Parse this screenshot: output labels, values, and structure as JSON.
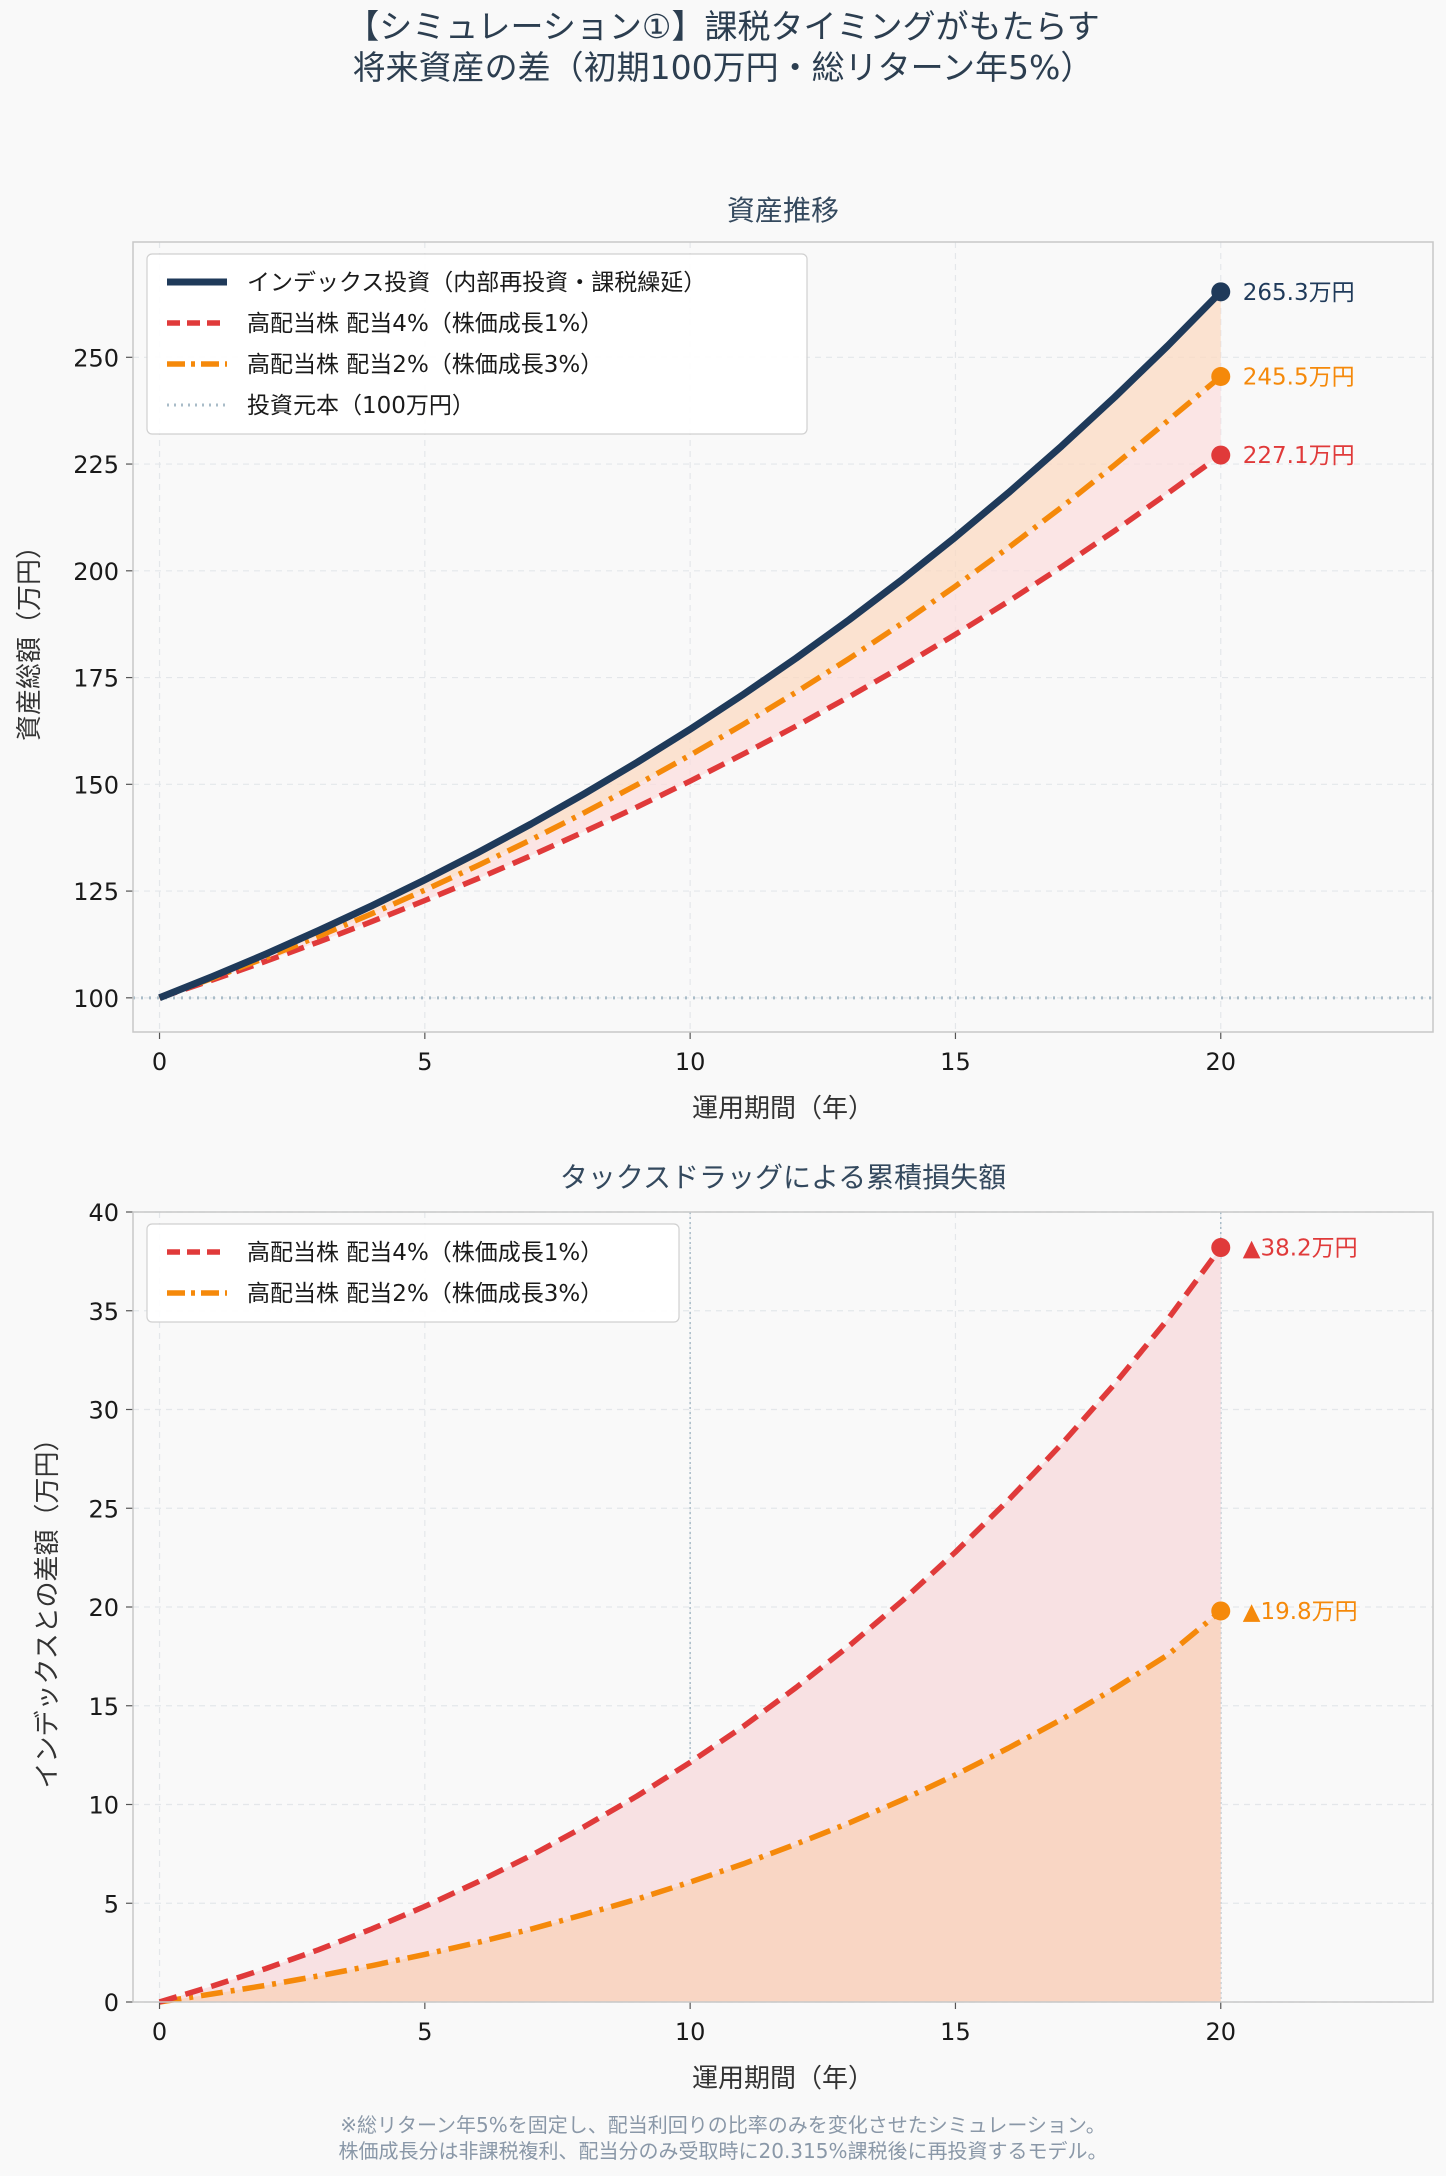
{
  "figure": {
    "title_line1": "【シミュレーション①】課税タイミングがもたらす",
    "title_line2": "将来資産の差（初期100万円・総リターン年5%）",
    "footnote_line1": "※総リターン年5%を固定し、配当利回りの比率のみを変化させたシミュレーション。",
    "footnote_line2": "株価成長分は非課税複利、配当分のみ受取時に20.315%課税後に再投資するモデル。"
  },
  "colors": {
    "index": "#1f3a5a",
    "high4": "#e03a3a",
    "high2": "#f5890a",
    "principal": "#a9bcc8"
  },
  "chart_data": [
    {
      "type": "line",
      "title": "資産推移",
      "xlabel": "運用期間（年）",
      "ylabel": "資産総額（万円）",
      "xlim": [
        -0.5,
        24
      ],
      "ylim": [
        92,
        277
      ],
      "xticks": [
        0,
        5,
        10,
        15,
        20
      ],
      "yticks": [
        100,
        125,
        150,
        175,
        200,
        225,
        250
      ],
      "grid": true,
      "legend_position": "top-left",
      "x": [
        0,
        1,
        2,
        3,
        4,
        5,
        6,
        7,
        8,
        9,
        10,
        11,
        12,
        13,
        14,
        15,
        16,
        17,
        18,
        19,
        20
      ],
      "series": [
        {
          "name": "インデックス投資（内部再投資・課税繰延）",
          "key": "index",
          "style": "solid",
          "values": [
            100,
            105,
            110.25,
            115.76,
            121.55,
            127.63,
            134.01,
            140.71,
            147.75,
            155.13,
            162.89,
            171.03,
            179.59,
            188.56,
            197.99,
            207.89,
            218.29,
            229.2,
            240.66,
            252.7,
            265.33
          ],
          "end_label": "265.3万円"
        },
        {
          "name": "高配当株 配当4%（株価成長1%）",
          "key": "high4",
          "style": "dashed",
          "values": [
            100,
            104.19,
            108.56,
            113.11,
            117.85,
            122.79,
            127.93,
            133.29,
            138.88,
            144.7,
            150.76,
            157.08,
            163.66,
            170.52,
            177.67,
            185.11,
            192.87,
            200.95,
            209.37,
            218.14,
            227.1
          ],
          "end_label": "227.1万円"
        },
        {
          "name": "高配当株 配当2%（株価成長3%）",
          "key": "high2",
          "style": "dashdot",
          "values": [
            100,
            104.59,
            109.41,
            114.44,
            119.71,
            125.22,
            130.99,
            137.02,
            143.32,
            149.92,
            156.82,
            164.04,
            171.59,
            179.49,
            187.75,
            196.39,
            205.43,
            214.89,
            224.78,
            235.13,
            245.5
          ],
          "end_label": "245.5万円"
        },
        {
          "name": "投資元本（100万円）",
          "key": "principal",
          "style": "dotted",
          "values": [
            100,
            100,
            100,
            100,
            100,
            100,
            100,
            100,
            100,
            100,
            100,
            100,
            100,
            100,
            100,
            100,
            100,
            100,
            100,
            100,
            100
          ]
        }
      ]
    },
    {
      "type": "area",
      "title": "タックスドラッグによる累積損失額",
      "xlabel": "運用期間（年）",
      "ylabel": "インデックスとの差額（万円）",
      "xlim": [
        -0.5,
        24
      ],
      "ylim": [
        0,
        40
      ],
      "xticks": [
        0,
        5,
        10,
        15,
        20
      ],
      "yticks": [
        0,
        5,
        10,
        15,
        20,
        25,
        30,
        35,
        40
      ],
      "grid": true,
      "legend_position": "top-left",
      "vlines": [
        10,
        20
      ],
      "x": [
        0,
        1,
        2,
        3,
        4,
        5,
        6,
        7,
        8,
        9,
        10,
        11,
        12,
        13,
        14,
        15,
        16,
        17,
        18,
        19,
        20
      ],
      "series": [
        {
          "name": "高配当株 配当4%（株価成長1%）",
          "key": "high4",
          "style": "dashed",
          "values": [
            0,
            0.81,
            1.69,
            2.65,
            3.7,
            4.84,
            6.08,
            7.42,
            8.87,
            10.43,
            12.13,
            13.95,
            15.93,
            18.04,
            20.32,
            22.78,
            25.42,
            28.25,
            31.29,
            34.56,
            38.2
          ],
          "end_label": "▲38.2万円"
        },
        {
          "name": "高配当株 配当2%（株価成長3%）",
          "key": "high2",
          "style": "dashdot",
          "values": [
            0,
            0.41,
            0.84,
            1.32,
            1.84,
            2.41,
            3.02,
            3.69,
            4.43,
            5.21,
            6.07,
            6.99,
            8.0,
            9.07,
            10.24,
            11.5,
            12.86,
            14.31,
            15.88,
            17.57,
            19.8
          ],
          "end_label": "▲19.8万円"
        }
      ]
    }
  ]
}
